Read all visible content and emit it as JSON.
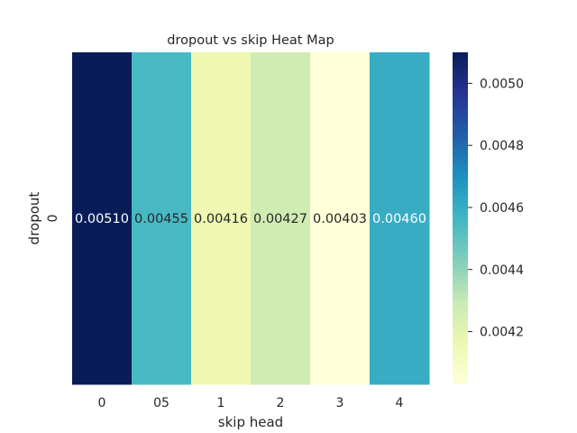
{
  "chart_data": {
    "type": "heatmap",
    "title": "dropout vs skip Heat Map",
    "xlabel": "skip head",
    "ylabel": "dropout",
    "x_categories": [
      "0",
      "05",
      "1",
      "2",
      "3",
      "4"
    ],
    "y_categories": [
      "0"
    ],
    "values": [
      [
        0.0051,
        0.00455,
        0.00416,
        0.00427,
        0.00403,
        0.0046
      ]
    ],
    "annotations": [
      "0.00510",
      "0.00455",
      "0.00416",
      "0.00427",
      "0.00403",
      "0.00460"
    ],
    "colormap": "YlGnBu",
    "colorbar": {
      "range": [
        0.00403,
        0.0051
      ],
      "ticks": [
        0.0042,
        0.0044,
        0.0046,
        0.0048,
        0.005
      ],
      "tick_labels": [
        "0.0042",
        "0.0044",
        "0.0046",
        "0.0048",
        "0.0050"
      ]
    },
    "grid": false,
    "legend": "colorbar-right"
  }
}
